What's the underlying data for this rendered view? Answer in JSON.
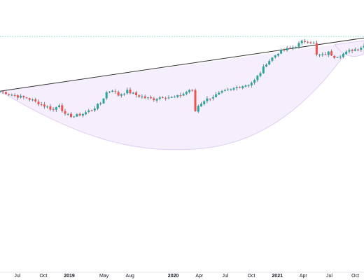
{
  "chart_data": {
    "type": "candlestick",
    "x_start": "2018-05",
    "x_end": "2021-11",
    "ylim": [
      0,
      100
    ],
    "grid": false,
    "legend": "none",
    "tick_labels": [
      {
        "label": "Jul",
        "date": "2018-07"
      },
      {
        "label": "Oct",
        "date": "2018-10"
      },
      {
        "label": "2019",
        "date": "2019-01",
        "bold": true
      },
      {
        "label": "May",
        "date": "2019-05"
      },
      {
        "label": "Aug",
        "date": "2019-08"
      },
      {
        "label": "2020",
        "date": "2020-01",
        "bold": true
      },
      {
        "label": "Apr",
        "date": "2020-04"
      },
      {
        "label": "Jul",
        "date": "2020-07"
      },
      {
        "label": "Oct",
        "date": "2020-10"
      },
      {
        "label": "2021",
        "date": "2021-01",
        "bold": true
      },
      {
        "label": "Apr",
        "date": "2021-04"
      },
      {
        "label": "Jul",
        "date": "2021-07"
      },
      {
        "label": "Oct",
        "date": "2021-10"
      }
    ],
    "price_path": [
      [
        0,
        62
      ],
      [
        3,
        60
      ],
      [
        6,
        58
      ],
      [
        9,
        57
      ],
      [
        12,
        54
      ],
      [
        15,
        51
      ],
      [
        18,
        48
      ],
      [
        20,
        52
      ],
      [
        22,
        44
      ],
      [
        25,
        43
      ],
      [
        28,
        45
      ],
      [
        31,
        48
      ],
      [
        34,
        53
      ],
      [
        36,
        61
      ],
      [
        38,
        63
      ],
      [
        40,
        59
      ],
      [
        43,
        62
      ],
      [
        46,
        59
      ],
      [
        49,
        57
      ],
      [
        52,
        56
      ],
      [
        55,
        58
      ],
      [
        58,
        57
      ],
      [
        60,
        58
      ],
      [
        62,
        60
      ],
      [
        64,
        63
      ],
      [
        65,
        62
      ],
      [
        66,
        47
      ],
      [
        67,
        51
      ],
      [
        69,
        55
      ],
      [
        72,
        58
      ],
      [
        75,
        61
      ],
      [
        78,
        63
      ],
      [
        80,
        65
      ],
      [
        82,
        66
      ],
      [
        84,
        67
      ],
      [
        86,
        70
      ],
      [
        88,
        76
      ],
      [
        90,
        83
      ],
      [
        92,
        87
      ],
      [
        94,
        91
      ],
      [
        96,
        93
      ],
      [
        98,
        94
      ],
      [
        100,
        96
      ],
      [
        102,
        99
      ],
      [
        104,
        100
      ],
      [
        106,
        98
      ],
      [
        107,
        89
      ],
      [
        109,
        89
      ],
      [
        111,
        91
      ],
      [
        113,
        88
      ],
      [
        115,
        89
      ],
      [
        117,
        91
      ],
      [
        119,
        93
      ],
      [
        121,
        94
      ],
      [
        123,
        96
      ]
    ],
    "colors": {
      "up": "#26a69a",
      "down": "#ef5350",
      "wick": "#5d6473",
      "cup_fill": "#f5effd",
      "cup_stroke": "#dfcdf3",
      "trend_line": "#333333",
      "resistance_line": "#7fd8d0",
      "axis_text": "#131722"
    }
  }
}
